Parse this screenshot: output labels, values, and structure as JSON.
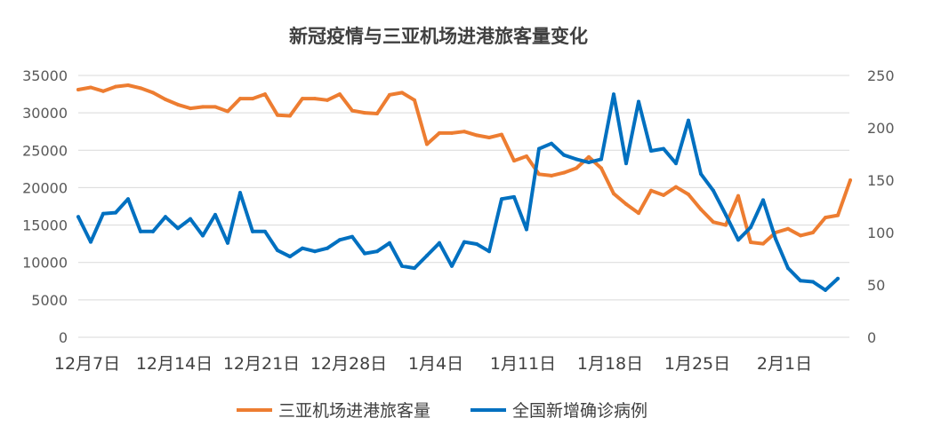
{
  "chart_data": {
    "type": "line",
    "title": "新冠疫情与三亚机场进港旅客量变化",
    "x_tick_labels": [
      "12月7日",
      "12月14日",
      "12月21日",
      "12月28日",
      "1月4日",
      "1月11日",
      "1月18日",
      "1月25日",
      "2月1日"
    ],
    "x_tick_day_index": [
      0,
      7,
      14,
      21,
      28,
      35,
      42,
      49,
      56
    ],
    "y_left": {
      "min": 0,
      "max": 35000,
      "ticks": [
        0,
        5000,
        10000,
        15000,
        20000,
        25000,
        30000,
        35000
      ]
    },
    "y_right": {
      "min": 0,
      "max": 250,
      "ticks": [
        0,
        50,
        100,
        150,
        200,
        250
      ]
    },
    "grid": true,
    "legend_position": "bottom",
    "series": [
      {
        "name": "三亚机场进港旅客量",
        "axis": "left",
        "color": "#ed7d31",
        "values": [
          33100,
          33400,
          32900,
          33500,
          33700,
          33300,
          32700,
          31800,
          31100,
          30600,
          30800,
          30800,
          30200,
          31900,
          31900,
          32500,
          29700,
          29600,
          31900,
          31900,
          31700,
          32500,
          30300,
          30000,
          29900,
          32400,
          32700,
          31700,
          25800,
          27300,
          27300,
          27500,
          27000,
          26700,
          27100,
          23600,
          24200,
          21800,
          21600,
          22000,
          22600,
          24100,
          22600,
          19200,
          17800,
          16600,
          19600,
          19000,
          20100,
          19100,
          17100,
          15400,
          15000,
          18900,
          12700,
          12500,
          14000,
          14500,
          13600,
          14000,
          16000,
          16300,
          21000
        ]
      },
      {
        "name": "全国新增确诊病例",
        "axis": "right",
        "color": "#0070c0",
        "values": [
          115,
          91,
          118,
          119,
          132,
          101,
          101,
          115,
          104,
          113,
          97,
          117,
          90,
          138,
          101,
          101,
          83,
          77,
          85,
          82,
          85,
          93,
          96,
          80,
          82,
          90,
          68,
          66,
          78,
          90,
          68,
          91,
          89,
          82,
          132,
          134,
          103,
          180,
          185,
          174,
          170,
          167,
          170,
          232,
          166,
          225,
          178,
          180,
          166,
          207,
          156,
          140,
          117,
          93,
          105,
          131,
          94,
          66,
          54,
          53,
          45,
          56
        ]
      }
    ]
  }
}
